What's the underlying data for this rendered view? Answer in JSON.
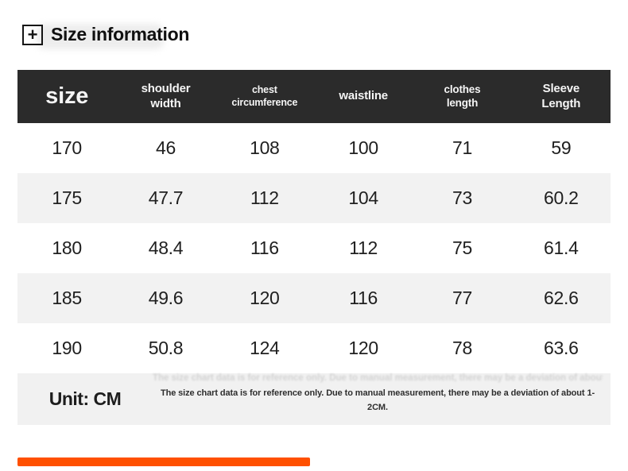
{
  "page": {
    "title": "Size information",
    "plus_icon": "+",
    "accent_color": "#ff5000",
    "header_bg": "#2b2b2b",
    "alt_row_bg": "#f2f2f2"
  },
  "table": {
    "columns": [
      {
        "label": "size"
      },
      {
        "label": "shoulder width"
      },
      {
        "label": "chest circumference"
      },
      {
        "label": "waistline"
      },
      {
        "label": "clothes length"
      },
      {
        "label": "Sleeve Length"
      }
    ],
    "rows": [
      [
        "170",
        "46",
        "108",
        "100",
        "71",
        "59"
      ],
      [
        "175",
        "47.7",
        "112",
        "104",
        "73",
        "60.2"
      ],
      [
        "180",
        "48.4",
        "116",
        "112",
        "75",
        "61.4"
      ],
      [
        "185",
        "49.6",
        "120",
        "116",
        "77",
        "62.6"
      ],
      [
        "190",
        "50.8",
        "124",
        "120",
        "78",
        "63.6"
      ]
    ],
    "footer": {
      "unit_label": "Unit: CM",
      "note": "The size chart data is for reference only. Due to manual measurement, there may be a deviation of about 1-2CM."
    }
  },
  "chart_data": {
    "type": "table",
    "title": "Size information",
    "columns": [
      "size",
      "shoulder width",
      "chest circumference",
      "waistline",
      "clothes length",
      "Sleeve Length"
    ],
    "rows": [
      [
        170,
        46,
        108,
        100,
        71,
        59
      ],
      [
        175,
        47.7,
        112,
        104,
        73,
        60.2
      ],
      [
        180,
        48.4,
        116,
        112,
        75,
        61.4
      ],
      [
        185,
        49.6,
        120,
        116,
        77,
        62.6
      ],
      [
        190,
        50.8,
        124,
        120,
        78,
        63.6
      ]
    ],
    "unit": "CM",
    "note": "The size chart data is for reference only. Due to manual measurement, there may be a deviation of about 1-2CM."
  }
}
